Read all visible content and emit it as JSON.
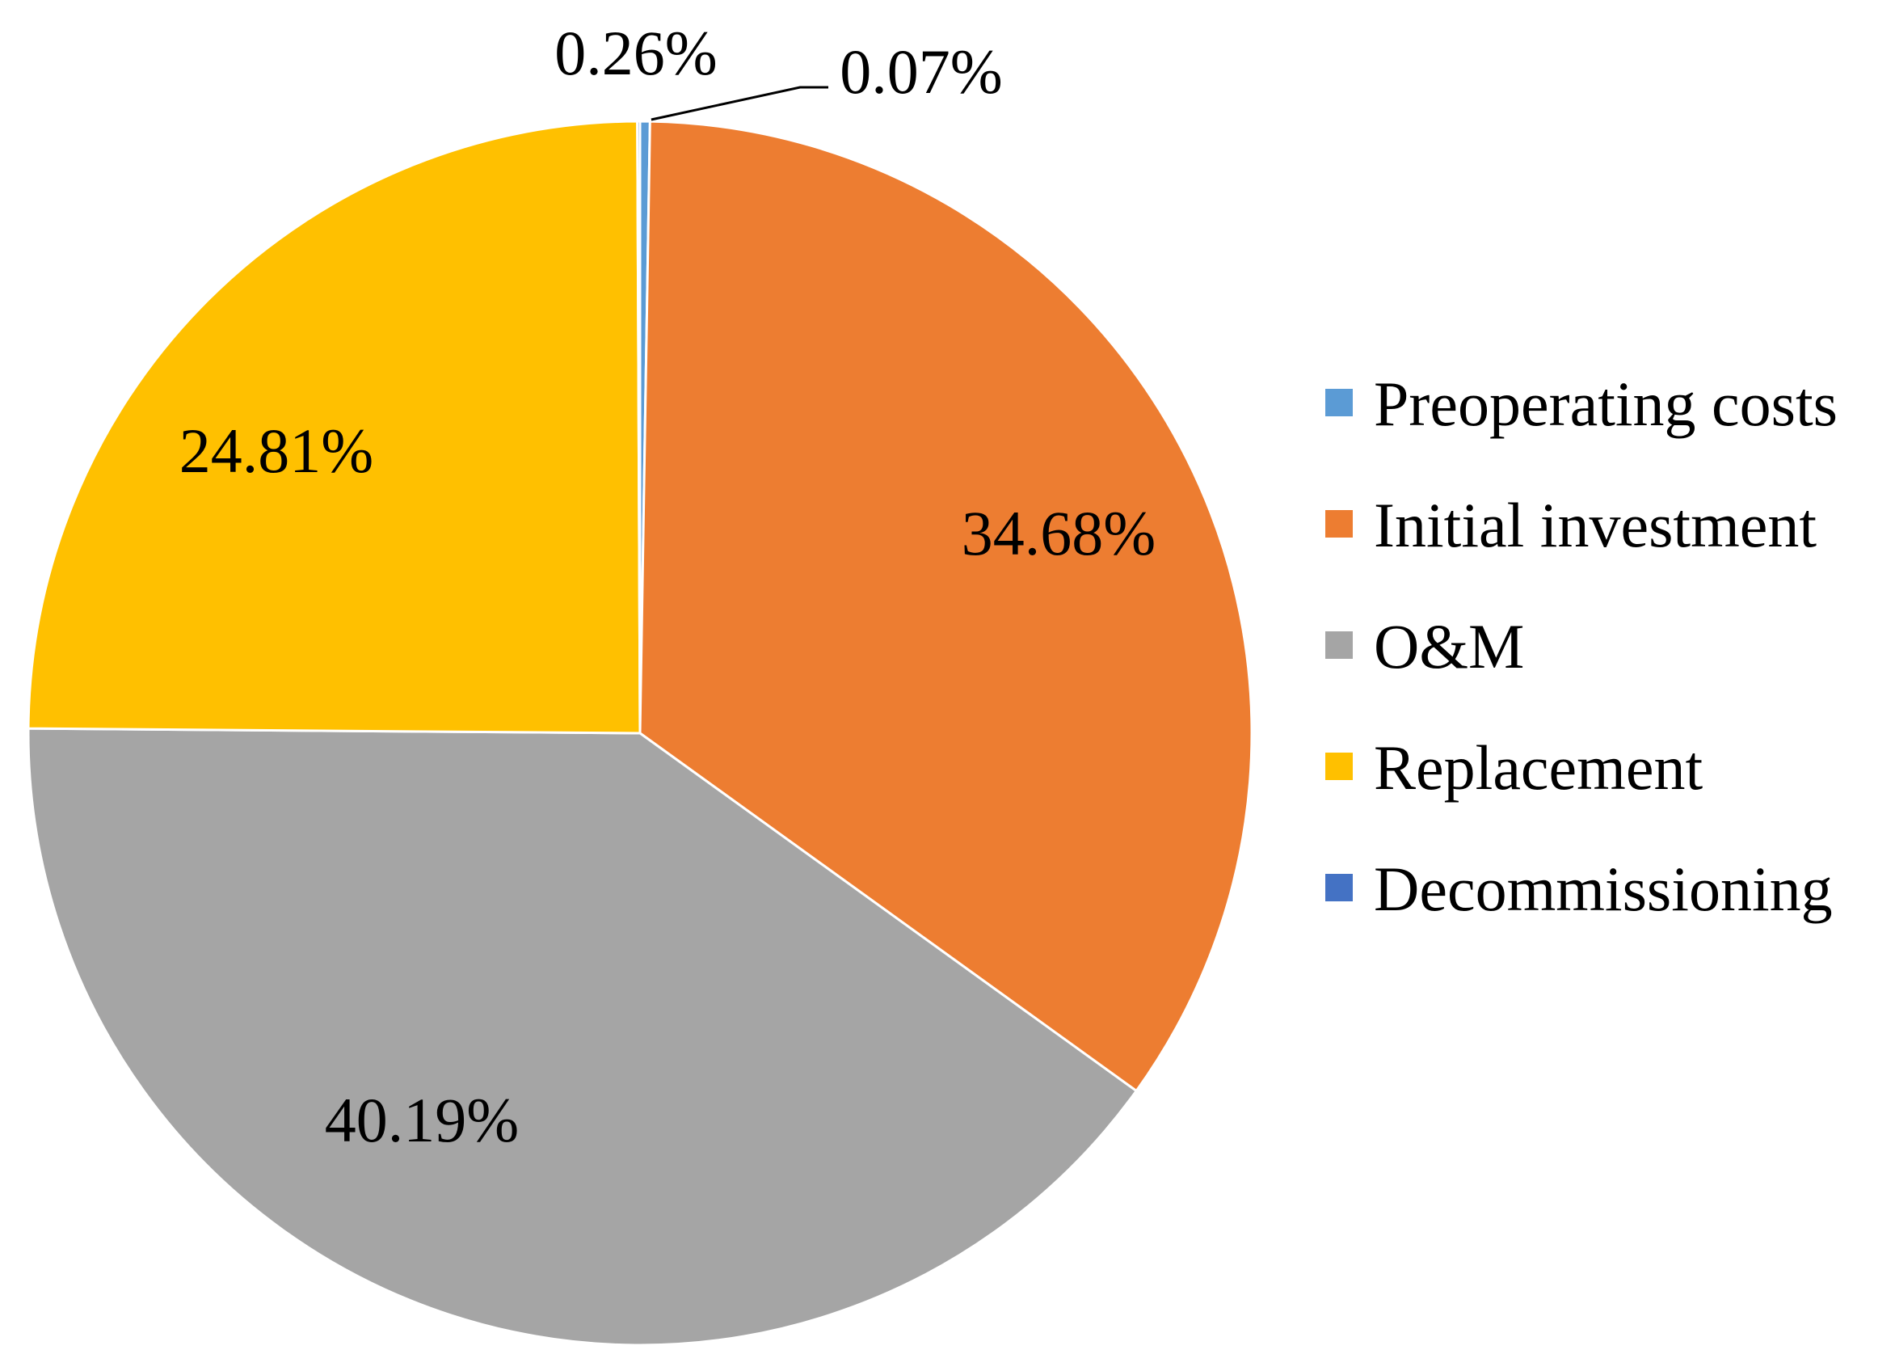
{
  "chart_data": {
    "type": "pie",
    "title": "",
    "categories": [
      "Preoperating costs",
      "Initial investment",
      "O&M",
      "Replacement",
      "Decommissioning"
    ],
    "values": [
      0.26,
      34.68,
      40.19,
      24.81,
      0.07
    ],
    "value_labels": [
      "0.26%",
      "34.68%",
      "40.19%",
      "24.81%",
      "0.07%"
    ],
    "unit": "%",
    "start_angle_deg": 0,
    "direction": "clockwise",
    "legend_position": "right",
    "colors": {
      "Preoperating costs": "#5B9BD5",
      "Initial investment": "#ED7D31",
      "O&M": "#A5A5A5",
      "Replacement": "#FFC000",
      "Decommissioning": "#4472C4"
    }
  }
}
